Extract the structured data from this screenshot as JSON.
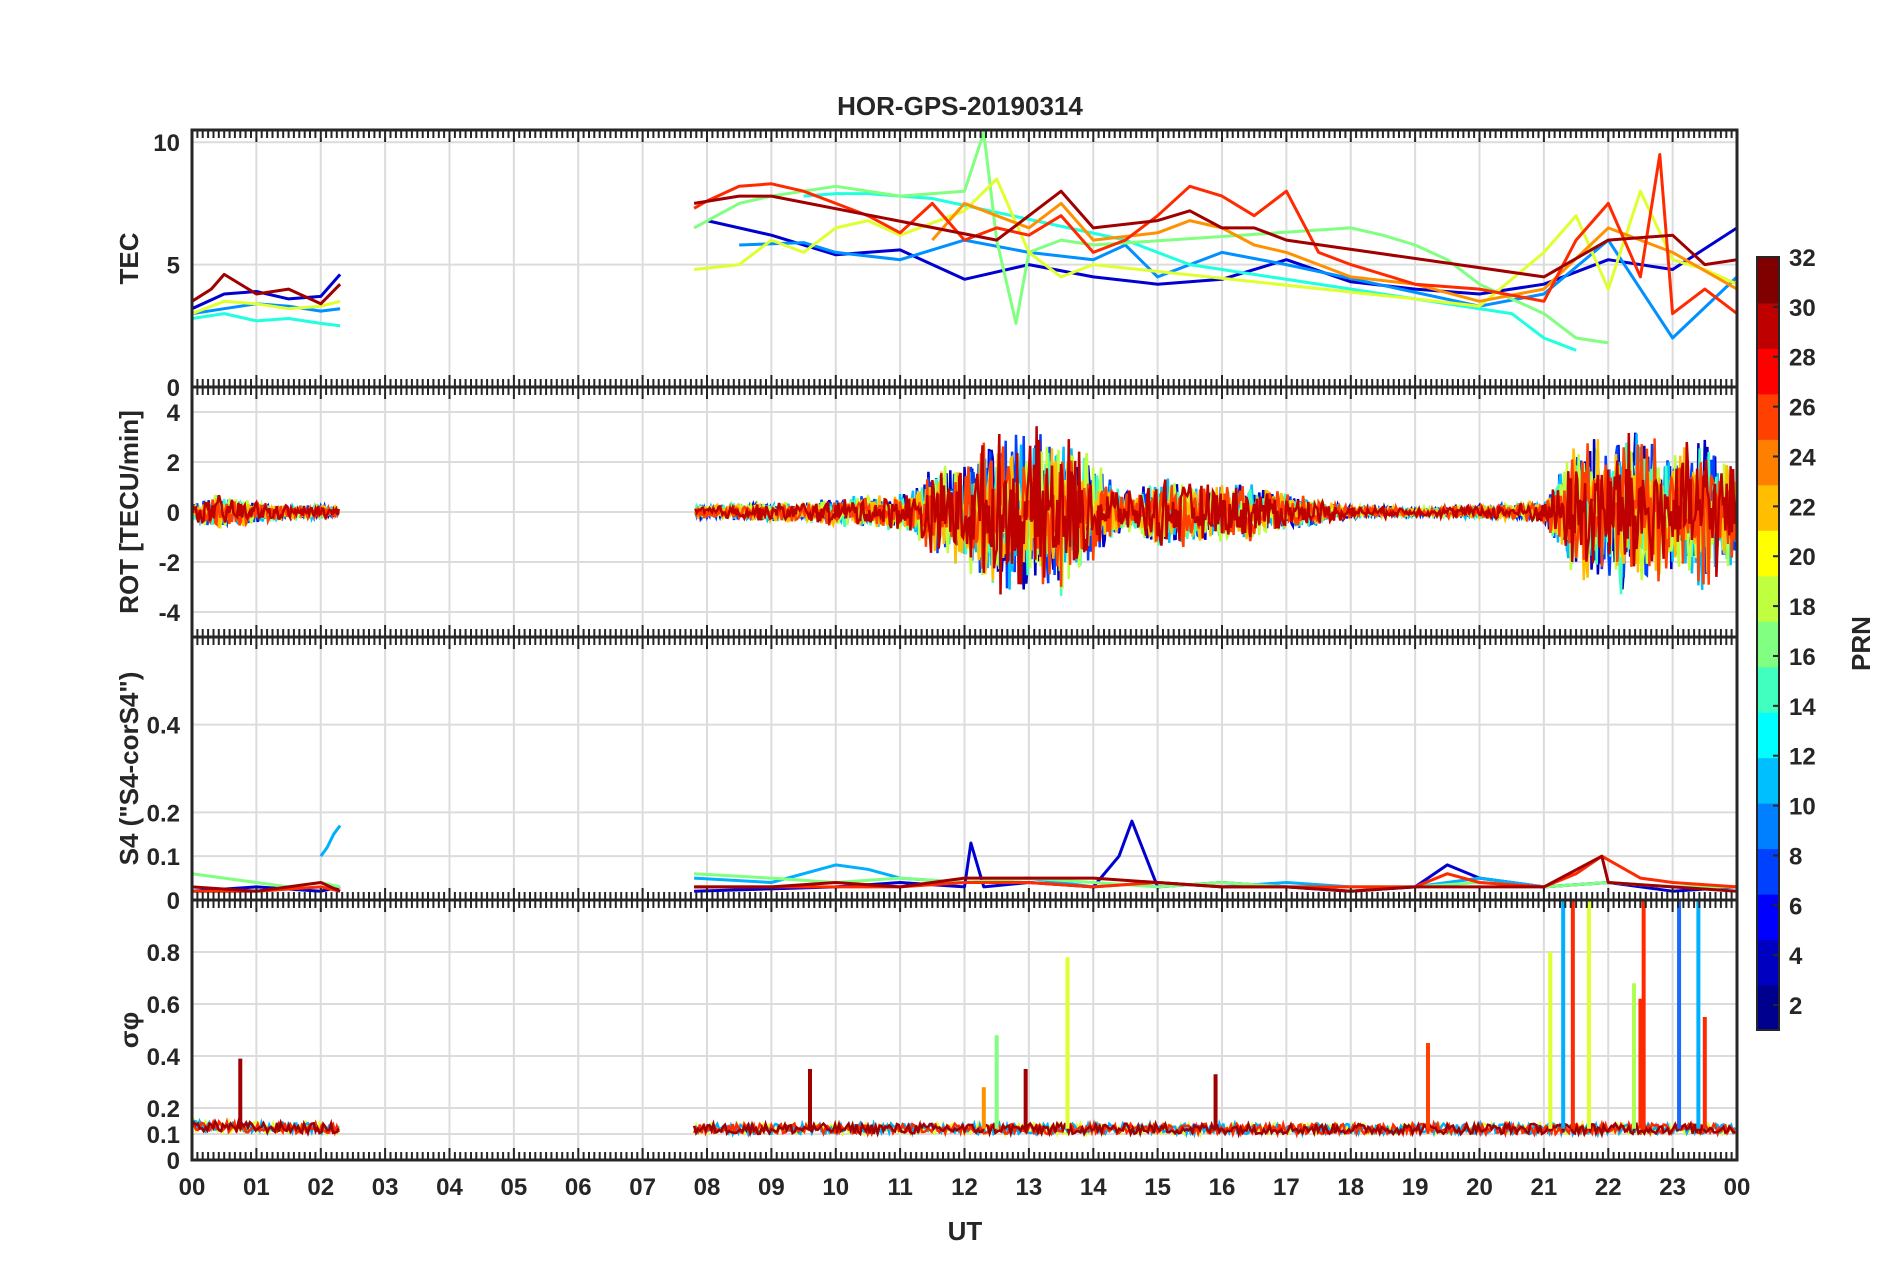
{
  "chart_data": {
    "type": "line",
    "title": "HOR-GPS-20190314",
    "xlabel": "UT",
    "x_tick_labels": [
      "00",
      "01",
      "02",
      "03",
      "04",
      "05",
      "06",
      "07",
      "08",
      "09",
      "10",
      "11",
      "12",
      "13",
      "14",
      "15",
      "16",
      "17",
      "18",
      "19",
      "20",
      "21",
      "22",
      "23",
      "00"
    ],
    "xlim": [
      0,
      24
    ],
    "grid": true,
    "data_gap_hours": [
      2.3,
      7.8
    ],
    "panels": [
      {
        "id": "tec",
        "ylabel": "TEC",
        "ylim": [
          0,
          10.5
        ],
        "yticks": [
          0,
          5,
          10
        ],
        "ytick_labels": [
          "0",
          "5",
          "10"
        ],
        "series": [
          {
            "prn": 3,
            "color": "#0000d0",
            "x": [
              0.0,
              0.5,
              1.0,
              1.5,
              2.0,
              2.3,
              8.0,
              9.0,
              10.0,
              11.0,
              12.0,
              13.0,
              14.0,
              15.0,
              16.0,
              17.0,
              18.0,
              19.0,
              20.0,
              21.0,
              22.0,
              23.0,
              24.0
            ],
            "y": [
              3.2,
              3.8,
              3.9,
              3.6,
              3.7,
              4.6,
              6.8,
              6.2,
              5.4,
              5.6,
              4.4,
              5.0,
              4.5,
              4.2,
              4.4,
              5.2,
              4.3,
              4.0,
              3.8,
              4.2,
              5.2,
              4.8,
              6.5
            ]
          },
          {
            "prn": 10,
            "color": "#0090ff",
            "x": [
              0.0,
              0.5,
              1.0,
              1.5,
              2.0,
              2.3,
              8.5,
              9.5,
              10.0,
              11.0,
              12.0,
              13.0,
              14.0,
              14.5,
              15.0,
              16.0,
              17.0,
              20.0,
              21.0,
              22.0,
              23.0,
              24.0
            ],
            "y": [
              3.0,
              3.2,
              3.4,
              3.3,
              3.1,
              3.2,
              5.8,
              5.9,
              5.5,
              5.2,
              6.0,
              5.5,
              5.2,
              5.8,
              4.5,
              5.5,
              5.0,
              3.3,
              3.8,
              6.0,
              2.0,
              4.5
            ]
          },
          {
            "prn": 13,
            "color": "#20ffe0",
            "x": [
              0.0,
              0.5,
              1.0,
              1.5,
              2.0,
              2.3,
              9.5,
              10.0,
              10.5,
              11.0,
              11.5,
              14.5,
              15.0,
              15.5,
              16.0,
              20.5,
              21.0,
              21.5
            ],
            "y": [
              2.8,
              3.0,
              2.7,
              2.8,
              2.6,
              2.5,
              7.8,
              7.9,
              7.9,
              7.8,
              7.7,
              6.0,
              5.5,
              5.0,
              4.8,
              3.0,
              2.0,
              1.5
            ]
          },
          {
            "prn": 17,
            "color": "#80ff80",
            "x": [
              7.8,
              8.5,
              9.0,
              9.5,
              10.0,
              10.5,
              11.0,
              11.5,
              12.0,
              12.3,
              12.5,
              12.8,
              13.0,
              13.5,
              14.0,
              18.0,
              18.5,
              19.0,
              19.5,
              20.0,
              21.0,
              21.5,
              22.0
            ],
            "y": [
              6.5,
              7.5,
              7.8,
              8.0,
              8.2,
              8.0,
              7.8,
              7.9,
              8.0,
              10.4,
              6.0,
              2.6,
              5.5,
              6.0,
              5.8,
              6.5,
              6.2,
              5.8,
              5.2,
              4.2,
              3.0,
              2.0,
              1.8
            ]
          },
          {
            "prn": 19,
            "color": "#e0ff30",
            "x": [
              0.0,
              0.5,
              1.0,
              1.5,
              2.0,
              2.3,
              7.8,
              8.5,
              9.0,
              9.5,
              10.0,
              10.5,
              11.0,
              12.0,
              12.5,
              13.0,
              13.5,
              14.0,
              19.0,
              20.0,
              21.0,
              21.5,
              22.0,
              22.5,
              23.0,
              23.5,
              24.0
            ],
            "y": [
              3.0,
              3.5,
              3.4,
              3.2,
              3.3,
              3.5,
              4.8,
              5.0,
              6.0,
              5.5,
              6.5,
              6.8,
              6.2,
              7.2,
              8.5,
              5.5,
              4.5,
              5.0,
              3.6,
              3.3,
              5.5,
              7.0,
              4.0,
              8.0,
              5.2,
              4.8,
              4.2
            ]
          },
          {
            "prn": 23,
            "color": "#ff9000",
            "x": [
              11.5,
              12.0,
              12.5,
              13.0,
              13.5,
              14.0,
              15.0,
              15.5,
              16.0,
              16.5,
              17.0,
              17.5,
              18.0,
              19.0,
              20.0,
              21.0,
              22.0,
              23.0,
              24.0
            ],
            "y": [
              6.0,
              7.5,
              7.0,
              6.5,
              7.5,
              6.0,
              6.3,
              6.8,
              6.5,
              5.8,
              5.5,
              5.0,
              4.5,
              4.2,
              3.5,
              4.0,
              6.5,
              5.5,
              4.0
            ]
          },
          {
            "prn": 27,
            "color": "#ff2a00",
            "x": [
              7.8,
              8.0,
              8.5,
              9.0,
              9.5,
              10.0,
              10.5,
              11.0,
              11.5,
              12.0,
              12.5,
              13.0,
              13.5,
              14.0,
              14.5,
              15.0,
              15.5,
              16.0,
              16.5,
              17.0,
              17.5,
              18.0,
              19.0,
              20.0,
              21.0,
              21.5,
              22.0,
              22.5,
              22.8,
              23.0,
              23.5,
              24.0
            ],
            "y": [
              7.3,
              7.6,
              8.2,
              8.3,
              8.0,
              7.5,
              7.0,
              6.3,
              7.5,
              6.0,
              6.5,
              6.2,
              7.0,
              5.5,
              6.0,
              7.0,
              8.2,
              7.8,
              7.0,
              8.0,
              5.5,
              5.0,
              4.2,
              4.0,
              3.5,
              6.0,
              7.5,
              4.5,
              9.5,
              3.0,
              4.0,
              3.0
            ]
          },
          {
            "prn": 31,
            "color": "#a00000",
            "x": [
              0.0,
              0.3,
              0.5,
              1.0,
              1.5,
              2.0,
              2.3,
              7.8,
              8.5,
              9.0,
              12.5,
              13.0,
              13.5,
              14.0,
              15.0,
              15.5,
              16.0,
              16.5,
              17.0,
              21.0,
              22.0,
              23.0,
              23.5,
              24.0
            ],
            "y": [
              3.5,
              4.0,
              4.6,
              3.8,
              4.0,
              3.4,
              4.2,
              7.5,
              7.8,
              7.8,
              6.0,
              7.0,
              8.0,
              6.5,
              6.8,
              7.2,
              6.5,
              6.5,
              6.0,
              4.5,
              6.0,
              6.2,
              5.0,
              5.2
            ]
          }
        ]
      },
      {
        "id": "rot",
        "ylabel": "ROT [TECU/min]",
        "ylim": [
          -5,
          5
        ],
        "yticks": [
          -4,
          -2,
          0,
          2,
          4
        ],
        "ytick_labels": [
          "-4",
          "-2",
          "0",
          "2",
          "4"
        ],
        "activity_envelope": {
          "description": "peak-to-peak ROT amplitude versus time (all PRNs)",
          "x": [
            0.0,
            0.5,
            1.0,
            1.5,
            2.0,
            2.3,
            7.8,
            9.0,
            10.0,
            11.0,
            11.5,
            12.0,
            12.5,
            13.0,
            13.5,
            14.0,
            14.5,
            15.0,
            15.5,
            16.0,
            16.5,
            17.0,
            18.0,
            19.0,
            20.0,
            21.0,
            21.5,
            22.0,
            22.5,
            23.0,
            23.5,
            24.0
          ],
          "amplitude": [
            0.4,
            0.8,
            0.5,
            0.3,
            0.3,
            0.2,
            0.3,
            0.4,
            0.6,
            0.8,
            1.8,
            2.4,
            3.5,
            3.5,
            3.8,
            2.2,
            0.8,
            1.6,
            1.4,
            1.2,
            1.2,
            0.8,
            0.3,
            0.2,
            0.3,
            0.5,
            3.0,
            3.5,
            3.8,
            2.5,
            3.5,
            2.0
          ]
        }
      },
      {
        "id": "s4",
        "ylabel": "S4 (\"S4-corS4\")",
        "ylim": [
          0,
          0.6
        ],
        "yticks": [
          0,
          0.1,
          0.2,
          0.4
        ],
        "ytick_labels": [
          "0",
          "0.1",
          "0.2",
          "0.4"
        ],
        "series": [
          {
            "prn": 3,
            "color": "#0000d0",
            "x": [
              0.0,
              1.0,
              2.0,
              2.3,
              7.8,
              10.0,
              11.0,
              12.0,
              12.1,
              12.3,
              13.0,
              14.0,
              14.4,
              14.6,
              15.0,
              16.0,
              17.0,
              18.0,
              19.0,
              19.5,
              20.0,
              21.0,
              22.0,
              23.0,
              24.0
            ],
            "y": [
              0.02,
              0.03,
              0.02,
              0.03,
              0.02,
              0.03,
              0.04,
              0.03,
              0.13,
              0.03,
              0.04,
              0.03,
              0.1,
              0.18,
              0.03,
              0.04,
              0.03,
              0.02,
              0.03,
              0.08,
              0.05,
              0.03,
              0.04,
              0.02,
              0.03
            ]
          },
          {
            "prn": 10,
            "color": "#00b0ff",
            "x": [
              2.0,
              2.1,
              2.2,
              2.3,
              7.8,
              9.0,
              10.0,
              10.5,
              11.0,
              12.0,
              13.0,
              14.0,
              15.0,
              16.0,
              17.0,
              18.0,
              19.0,
              20.0,
              21.0,
              22.0,
              23.0,
              24.0
            ],
            "y": [
              0.1,
              0.12,
              0.15,
              0.17,
              0.05,
              0.04,
              0.08,
              0.07,
              0.05,
              0.04,
              0.05,
              0.03,
              0.04,
              0.03,
              0.04,
              0.03,
              0.03,
              0.05,
              0.03,
              0.04,
              0.03,
              0.03
            ]
          },
          {
            "prn": 17,
            "color": "#80ff80",
            "x": [
              0.0,
              0.5,
              1.0,
              1.5,
              2.0,
              2.3,
              7.8,
              9.0,
              10.0,
              11.0,
              12.0,
              13.0,
              14.0,
              15.0,
              16.0,
              17.0,
              18.0,
              19.0,
              20.0,
              21.0,
              22.0,
              23.0,
              24.0
            ],
            "y": [
              0.06,
              0.05,
              0.04,
              0.03,
              0.04,
              0.03,
              0.06,
              0.05,
              0.04,
              0.05,
              0.04,
              0.05,
              0.04,
              0.03,
              0.04,
              0.03,
              0.03,
              0.03,
              0.04,
              0.03,
              0.04,
              0.03,
              0.03
            ]
          },
          {
            "prn": 27,
            "color": "#ff2a00",
            "x": [
              0.0,
              1.0,
              2.0,
              2.3,
              7.8,
              9.0,
              10.0,
              11.0,
              12.0,
              13.0,
              14.0,
              15.0,
              16.0,
              17.0,
              18.0,
              19.0,
              19.5,
              20.0,
              21.0,
              21.5,
              21.9,
              22.5,
              23.0,
              24.0
            ],
            "y": [
              0.02,
              0.02,
              0.03,
              0.02,
              0.03,
              0.03,
              0.03,
              0.03,
              0.04,
              0.04,
              0.03,
              0.04,
              0.03,
              0.03,
              0.03,
              0.03,
              0.06,
              0.04,
              0.03,
              0.06,
              0.1,
              0.05,
              0.04,
              0.03
            ]
          },
          {
            "prn": 31,
            "color": "#a00000",
            "x": [
              0.0,
              1.0,
              2.0,
              2.3,
              7.8,
              9.0,
              10.0,
              11.0,
              12.0,
              13.0,
              14.0,
              15.0,
              16.0,
              17.0,
              18.0,
              19.0,
              20.0,
              21.0,
              21.9,
              22.0,
              23.0,
              24.0
            ],
            "y": [
              0.03,
              0.02,
              0.04,
              0.02,
              0.03,
              0.03,
              0.04,
              0.03,
              0.05,
              0.05,
              0.05,
              0.04,
              0.03,
              0.03,
              0.02,
              0.03,
              0.03,
              0.03,
              0.1,
              0.04,
              0.03,
              0.02
            ]
          }
        ]
      },
      {
        "id": "sigma_phi",
        "ylabel": "σφ",
        "ylim": [
          0,
          1.0
        ],
        "yticks": [
          0,
          0.1,
          0.2,
          0.4,
          0.6,
          0.8
        ],
        "ytick_labels": [
          "0",
          "0.1",
          "0.2",
          "0.4",
          "0.6",
          "0.8"
        ],
        "baseline": {
          "x": [
            0.0,
            2.3,
            7.8,
            24.0
          ],
          "y": [
            0.13,
            0.12,
            0.12,
            0.12
          ]
        },
        "spikes": [
          {
            "x": 0.75,
            "y": 0.39,
            "color": "#a00000"
          },
          {
            "x": 9.6,
            "y": 0.35,
            "color": "#a00000"
          },
          {
            "x": 12.5,
            "y": 0.48,
            "color": "#80ff80"
          },
          {
            "x": 12.3,
            "y": 0.28,
            "color": "#ff9000"
          },
          {
            "x": 12.95,
            "y": 0.35,
            "color": "#a00000"
          },
          {
            "x": 13.6,
            "y": 0.78,
            "color": "#e0ff30"
          },
          {
            "x": 15.9,
            "y": 0.33,
            "color": "#a00000"
          },
          {
            "x": 19.2,
            "y": 0.45,
            "color": "#ff4000"
          },
          {
            "x": 21.1,
            "y": 0.8,
            "color": "#e0ff30"
          },
          {
            "x": 21.3,
            "y": 1.0,
            "color": "#00b0ff"
          },
          {
            "x": 21.45,
            "y": 1.0,
            "color": "#ff2a00"
          },
          {
            "x": 21.7,
            "y": 1.0,
            "color": "#e0ff30"
          },
          {
            "x": 22.4,
            "y": 0.68,
            "color": "#b0ff50"
          },
          {
            "x": 22.5,
            "y": 0.62,
            "color": "#ff2a00"
          },
          {
            "x": 22.55,
            "y": 1.0,
            "color": "#ff2a00"
          },
          {
            "x": 23.1,
            "y": 1.0,
            "color": "#1a6aff"
          },
          {
            "x": 23.4,
            "y": 1.0,
            "color": "#00b0ff"
          },
          {
            "x": 23.5,
            "y": 0.55,
            "color": "#ff2a00"
          }
        ]
      }
    ],
    "colorbar": {
      "label": "PRN",
      "range": [
        1,
        32
      ],
      "tick_labels": [
        "2",
        "4",
        "6",
        "8",
        "10",
        "12",
        "14",
        "16",
        "18",
        "20",
        "22",
        "24",
        "26",
        "28",
        "30",
        "32"
      ],
      "colormap": "jet",
      "colors": [
        "#00008f",
        "#0000c0",
        "#0000ff",
        "#0040ff",
        "#0080ff",
        "#00bfff",
        "#00ffff",
        "#40ffbf",
        "#80ff80",
        "#bfff40",
        "#ffff00",
        "#ffbf00",
        "#ff8000",
        "#ff4000",
        "#ff0000",
        "#bf0000",
        "#800000"
      ]
    }
  }
}
